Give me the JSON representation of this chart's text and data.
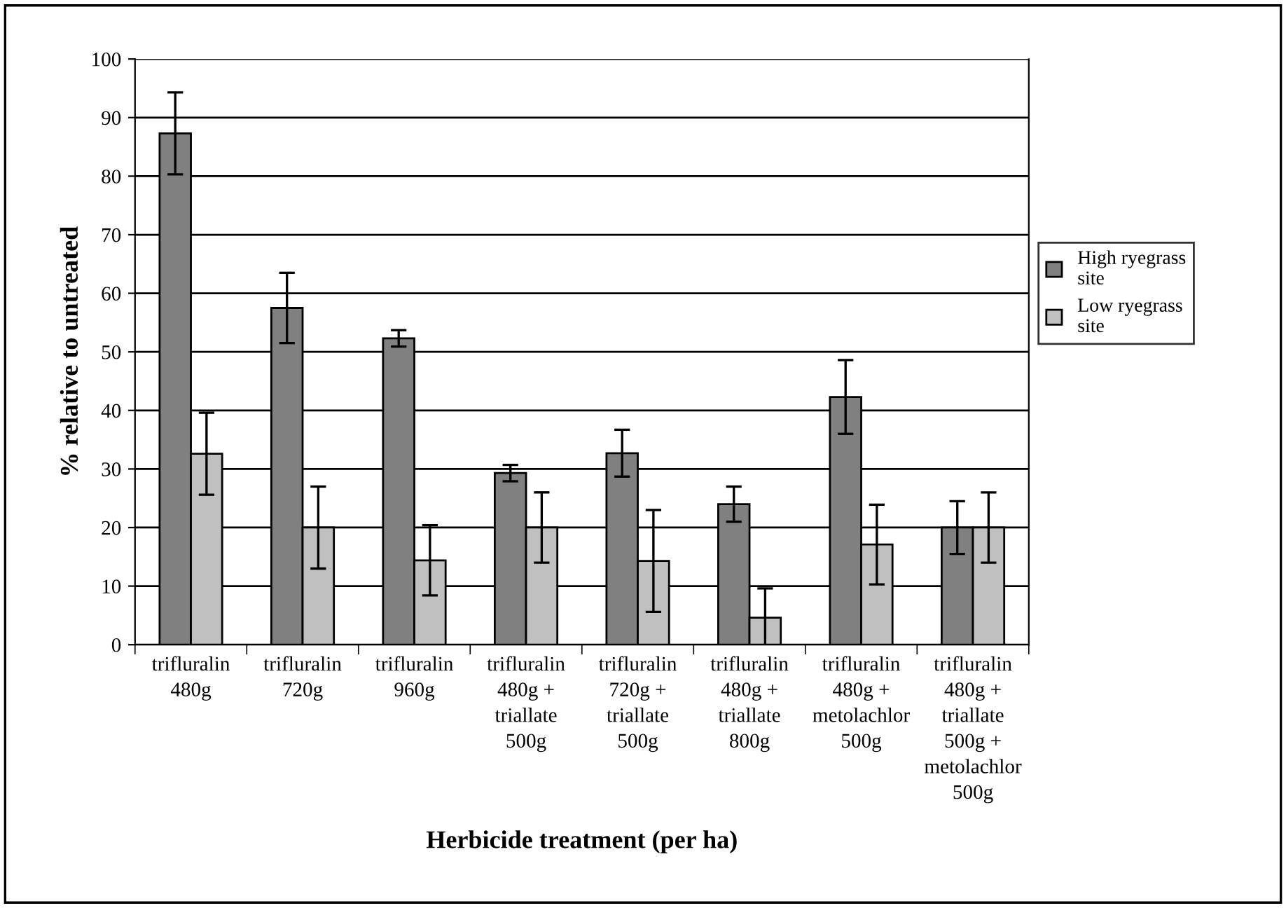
{
  "chart_data": {
    "type": "bar",
    "xlabel": "Herbicide treatment (per ha)",
    "ylabel": "% relative to untreated",
    "categories": [
      "trifluralin\n480g",
      "trifluralin\n720g",
      "trifluralin\n960g",
      "trifluralin\n480g +\ntriallate\n500g",
      "trifluralin\n720g +\ntriallate\n500g",
      "trifluralin\n480g +\ntriallate\n800g",
      "trifluralin\n480g +\nmetolachlor\n500g",
      "trifluralin\n480g +\ntriallate\n500g +\nmetolachlor\n500g"
    ],
    "series": [
      {
        "name": "High ryegrass site",
        "color": "#808080",
        "values": [
          87.3,
          57.5,
          52.3,
          29.3,
          32.7,
          24,
          42.3,
          20
        ],
        "errors": [
          7,
          6,
          1.4,
          1.4,
          4,
          3,
          6.3,
          4.5
        ]
      },
      {
        "name": "Low ryegrass site",
        "color": "#c0c0c0",
        "values": [
          32.6,
          20,
          14.4,
          20,
          14.3,
          4.6,
          17.1,
          20
        ],
        "errors": [
          7,
          7,
          6,
          6,
          8.7,
          5,
          6.8,
          6
        ]
      }
    ],
    "ylim": [
      0,
      100
    ],
    "yticks": [
      0,
      10,
      20,
      30,
      40,
      50,
      60,
      70,
      80,
      90,
      100
    ],
    "grid": "y",
    "legend": "right"
  }
}
